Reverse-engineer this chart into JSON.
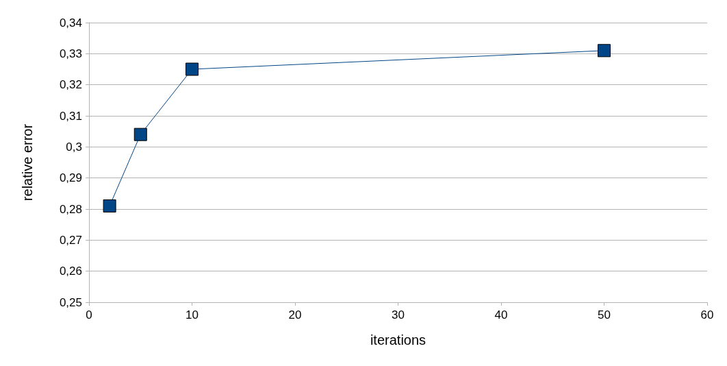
{
  "chart_data": {
    "type": "line",
    "xlabel": "iterations",
    "ylabel": "relative error",
    "x": [
      2,
      5,
      10,
      50
    ],
    "series": [
      {
        "color": "#004586",
        "values": [
          0.281,
          0.304,
          0.325,
          0.331
        ]
      }
    ],
    "xlim": [
      0,
      60
    ],
    "xticks": [
      0,
      10,
      20,
      30,
      40,
      50,
      60
    ],
    "ylim": [
      0.25,
      0.34
    ],
    "yticks": [
      {
        "value": 0.25,
        "label": "0,25"
      },
      {
        "value": 0.26,
        "label": "0,26"
      },
      {
        "value": 0.27,
        "label": "0,27"
      },
      {
        "value": 0.28,
        "label": "0,28"
      },
      {
        "value": 0.29,
        "label": "0,29"
      },
      {
        "value": 0.3,
        "label": "0,3"
      },
      {
        "value": 0.31,
        "label": "0,31"
      },
      {
        "value": 0.32,
        "label": "0,32"
      },
      {
        "value": 0.33,
        "label": "0,33"
      },
      {
        "value": 0.34,
        "label": "0,34"
      }
    ],
    "grid": "y",
    "marker": "square",
    "line_style": "solid"
  }
}
